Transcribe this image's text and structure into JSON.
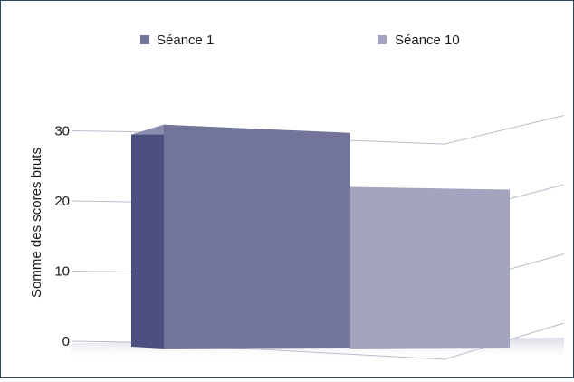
{
  "chart_data": {
    "type": "bar",
    "style": "3d",
    "title": "",
    "xlabel": "",
    "ylabel": "Somme des scores bruts",
    "ylim": [
      0,
      30
    ],
    "yticks": [
      0,
      10,
      20,
      30
    ],
    "grid": true,
    "legend_position": "top",
    "series": [
      {
        "name": "Séance 1",
        "values": [
          31
        ],
        "color": "#727599"
      },
      {
        "name": "Séance 10",
        "values": [
          22
        ],
        "color": "#a3a5be"
      }
    ]
  }
}
